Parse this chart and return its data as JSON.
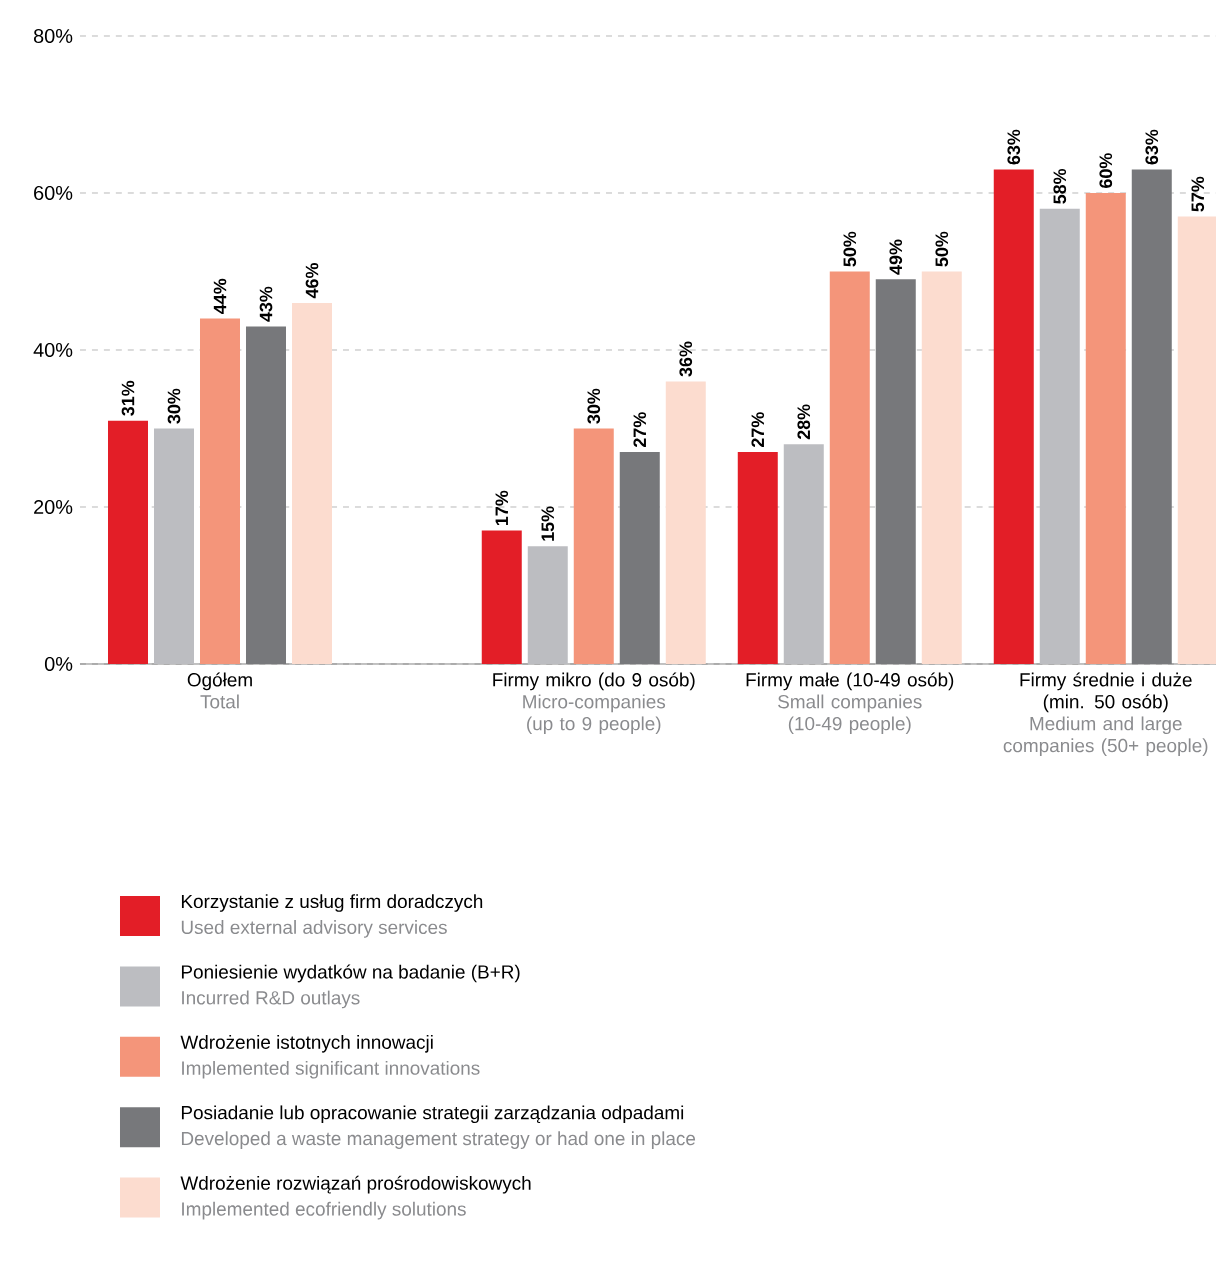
{
  "chart_data": {
    "type": "bar",
    "categories": [
      "Ogółem",
      "Firmy mikro (do 9 osób)",
      "Firmy małe (10-49 osób)",
      "Firmy średnie i duże (min. 50 osób)"
    ],
    "series": [
      {
        "name": "Korzystanie z usług firm doradczych",
        "color": "#e31e27",
        "values": [
          31,
          17,
          27,
          63
        ],
        "value_labels": [
          "31%",
          "17%",
          "27%",
          "63%"
        ]
      },
      {
        "name": "Poniesienie wydatków na badanie (B+R)",
        "color": "#bcbdc1",
        "values": [
          30,
          15,
          28,
          58
        ],
        "value_labels": [
          "30%",
          "15%",
          "28%",
          "58%"
        ]
      },
      {
        "name": "Wdrożenie istotnych innowacji",
        "color": "#f4957a",
        "values": [
          44,
          30,
          50,
          60
        ],
        "value_labels": [
          "44%",
          "30%",
          "50%",
          "60%"
        ]
      },
      {
        "name": "Posiadanie lub opracowanie strategii zarządzania odpadami",
        "color": "#77787b",
        "values": [
          43,
          27,
          49,
          63
        ],
        "value_labels": [
          "43%",
          "27%",
          "49%",
          "63%"
        ]
      },
      {
        "name": "Wdrożenie rozwiązań prośrodowiskowych",
        "color": "#fcdccf",
        "values": [
          46,
          36,
          50,
          57
        ],
        "value_labels": [
          "46%",
          "36%",
          "50%",
          "57%"
        ]
      }
    ],
    "ylim": [
      0,
      80
    ],
    "yticks": [
      {
        "value": 0,
        "label": "0%"
      },
      {
        "value": 20,
        "label": "20%"
      },
      {
        "value": 40,
        "label": "40%"
      },
      {
        "value": 60,
        "label": "60%"
      },
      {
        "value": 80,
        "label": "80%"
      }
    ],
    "grid": "y",
    "legend": "bottom",
    "annotations": [
      "Total",
      "Micro-companies (up to 9 people)",
      "Small companies (10-49 people)",
      "Medium and large companies (50+ people)",
      "Used external advisory services",
      "Incurred R&D outlays",
      "Implemented significant innovations",
      "Developed a waste management strategy or had one in place",
      "Implemented ecofriendly solutions"
    ]
  }
}
